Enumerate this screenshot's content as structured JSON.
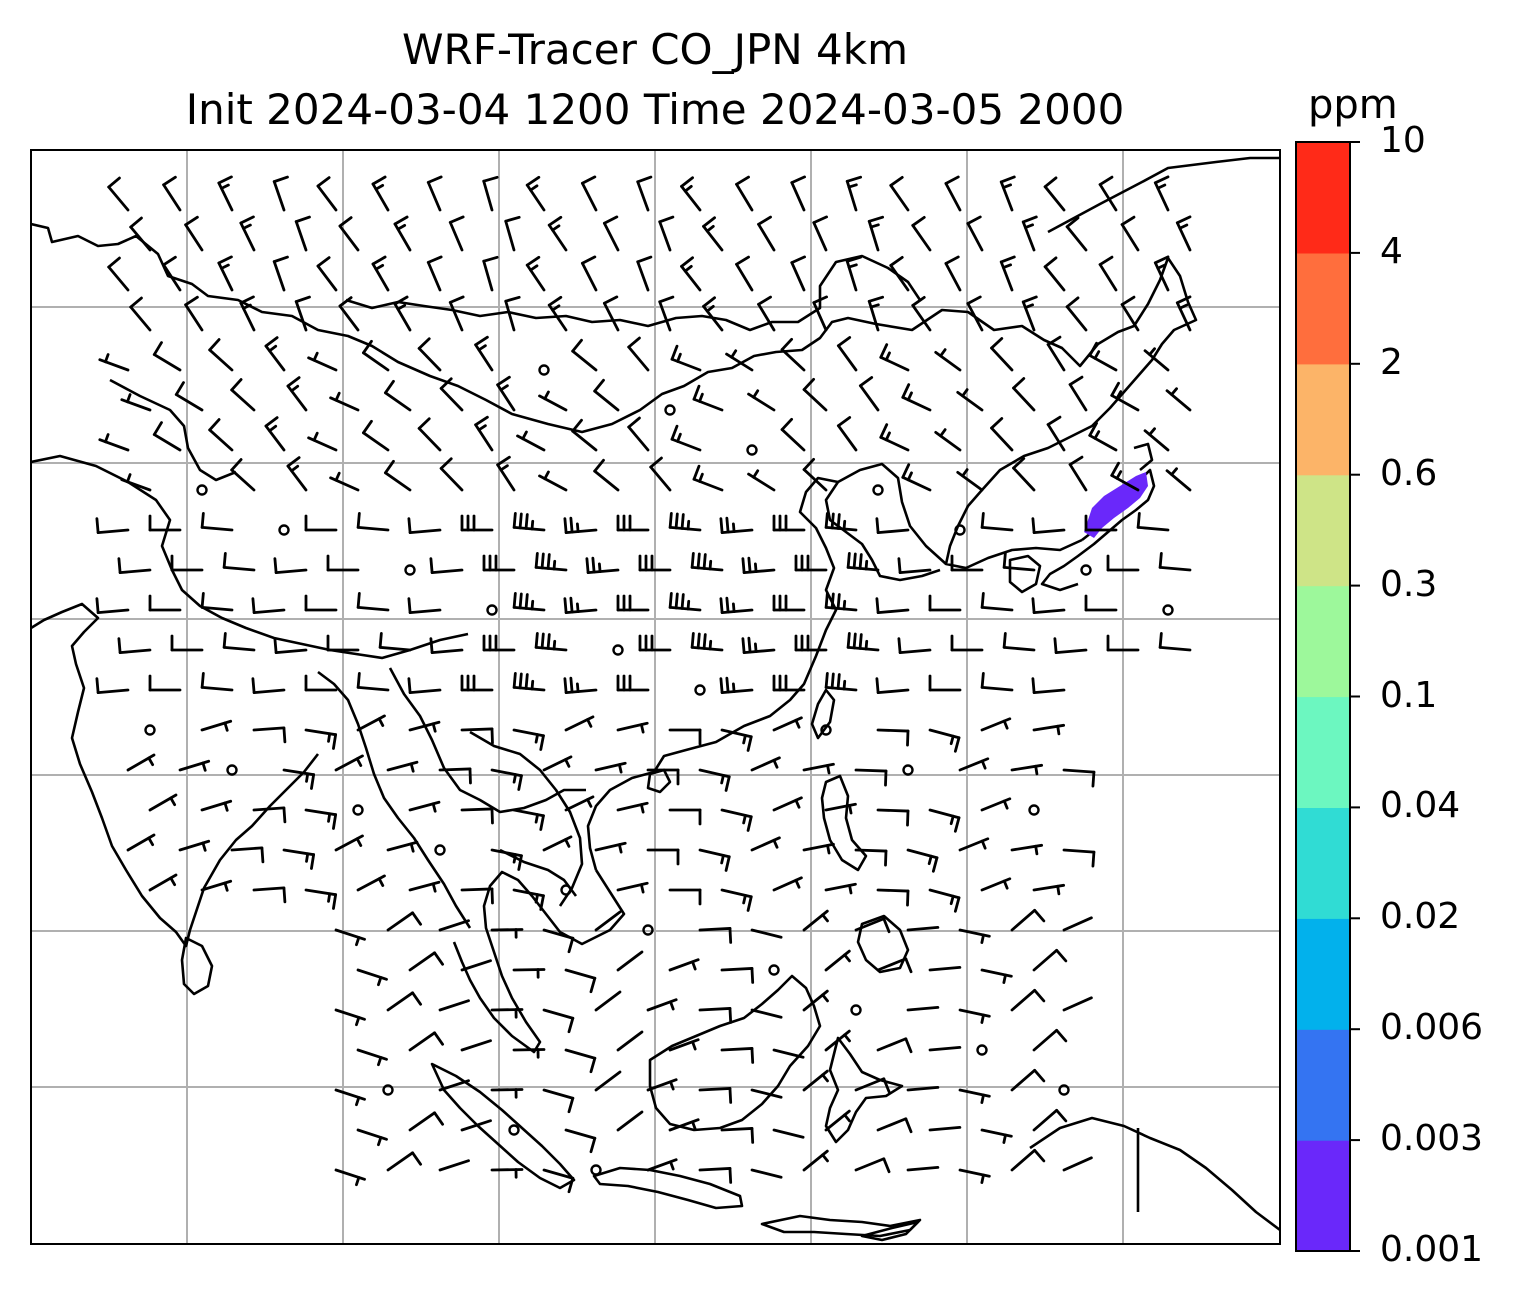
{
  "title": {
    "line1": "WRF-Tracer CO_JPN 4km",
    "line2": "Init 2024-03-04 1200 Time 2024-03-05 2000"
  },
  "colorbar": {
    "unit": "ppm",
    "levels": [
      "0.001",
      "0.003",
      "0.006",
      "0.02",
      "0.04",
      "0.1",
      "0.3",
      "0.6",
      "2",
      "4",
      "10"
    ],
    "colors": [
      "#6a28fa",
      "#3474f2",
      "#02b1ec",
      "#30dcd4",
      "#6cf7c0",
      "#9df89b",
      "#cee487",
      "#fcb468",
      "#ff6e3d",
      "#ff2a18"
    ]
  },
  "map": {
    "grid_color": "#b0b0b0",
    "coast_color": "#000000",
    "plume_color": "#6a28fa",
    "plume_location": "central Japan (Kanto)",
    "barb_color": "#000000"
  }
}
